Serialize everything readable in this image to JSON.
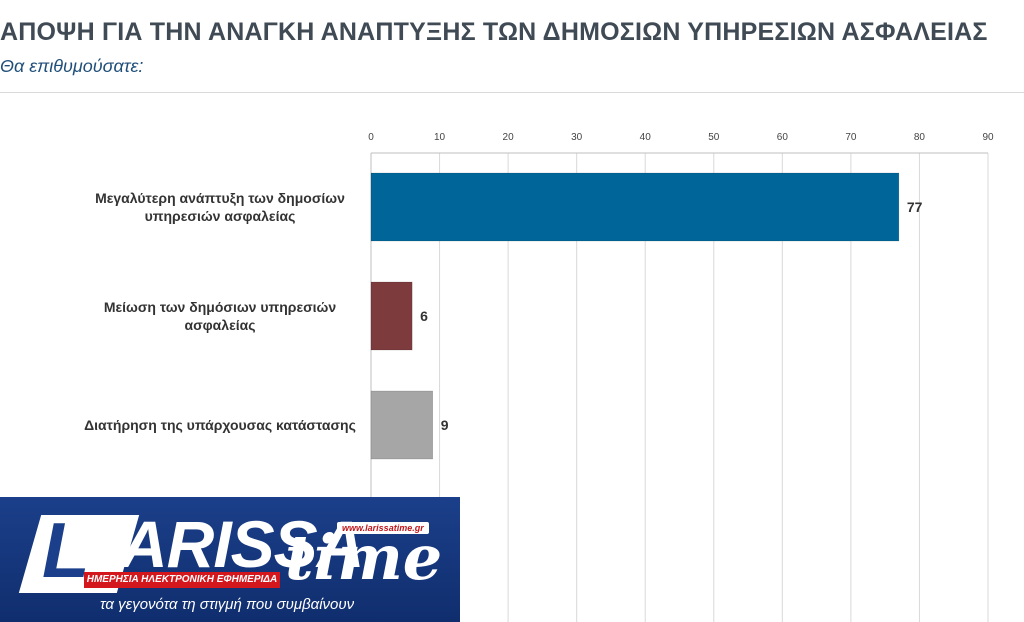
{
  "header": {
    "title": "ΑΠΟΨΗ ΓΙΑ ΤΗΝ ΑΝΑΓΚΗ ΑΝΑΠΤΥΞΗΣ ΤΩΝ ΔΗΜΟΣΙΩΝ ΥΠΗΡΕΣΙΩΝ ΑΣΦΑΛΕΙΑΣ",
    "subtitle": "Θα επιθυμούσατε:"
  },
  "chart_data": {
    "type": "bar",
    "orientation": "horizontal",
    "categories": [
      [
        "Μεγαλύτερη ανάπτυξη των δημοσίων",
        "υπηρεσιών ασφαλείας"
      ],
      [
        "Μείωση των δημόσιων υπηρεσιών",
        "ασφαλείας"
      ],
      [
        "Διατήρηση της υπάρχουσας κατάστασης"
      ]
    ],
    "values": [
      77,
      6,
      9
    ],
    "bar_colors": [
      "#006699",
      "#7d3b3e",
      "#a6a6a6"
    ],
    "xlim": [
      0,
      90
    ],
    "xticks": [
      0,
      10,
      20,
      30,
      40,
      50,
      60,
      70,
      80,
      90
    ],
    "tick_position": "top",
    "data_labels": true,
    "grid": true
  },
  "logo": {
    "url": "www.larissatime.gr",
    "banner": "ΗΜΕΡΗΣΙΑ ΗΛΕΚΤΡΟΝΙΚΗ ΕΦΗΜΕΡΙΔΑ",
    "slogan": "τα γεγονότα τη στιγμή που συμβαίνουν"
  }
}
